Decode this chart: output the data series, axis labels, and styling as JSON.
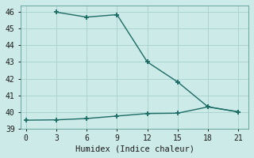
{
  "title": "",
  "xlabel": "Humidex (Indice chaleur)",
  "ylabel": "",
  "background_color": "#cceae7",
  "grid_color": "#aad4d0",
  "line_color": "#1c6b65",
  "upper_x": [
    3,
    6,
    9,
    12,
    15,
    18,
    21
  ],
  "upper_y": [
    46.0,
    45.7,
    45.85,
    43.0,
    41.8,
    40.3,
    40.0
  ],
  "lower_x": [
    0,
    3,
    6,
    9,
    12,
    15,
    18,
    21
  ],
  "lower_y": [
    39.5,
    39.52,
    39.6,
    39.75,
    39.9,
    39.92,
    40.3,
    40.0
  ],
  "xlim": [
    -0.5,
    22
  ],
  "ylim": [
    39,
    46.4
  ],
  "xticks": [
    0,
    3,
    6,
    9,
    12,
    15,
    18,
    21
  ],
  "yticks": [
    39,
    40,
    41,
    42,
    43,
    44,
    45,
    46
  ],
  "marker": "+",
  "markersize": 4,
  "markeredgewidth": 1.3,
  "linewidth": 1.0,
  "fontsize_tick": 7,
  "fontsize_label": 7.5
}
